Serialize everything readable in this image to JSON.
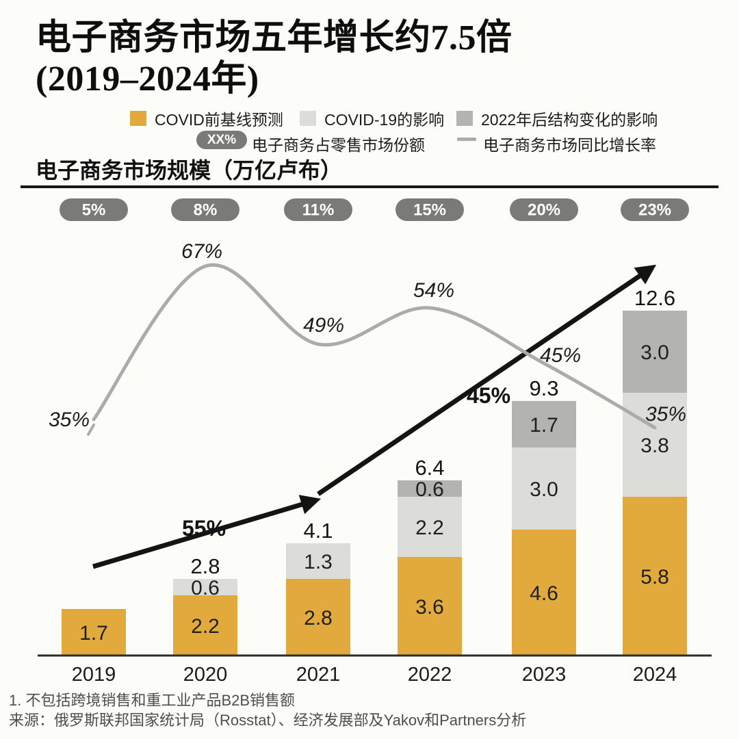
{
  "header": {
    "title_line1": "电子商务市场五年增长约7.5倍",
    "title_line2": "(2019–2024年)",
    "subtitle": "电子商务市场规模（万亿卢布）"
  },
  "legend": {
    "series": [
      {
        "label": "COVID前基线预测",
        "color": "#E2A93C"
      },
      {
        "label": "COVID-19的影响",
        "color": "#DCDCD8"
      },
      {
        "label": "2022年后结构变化的影响",
        "color": "#B3B3B0"
      }
    ],
    "share_badge": {
      "badge_text": "XX%",
      "label": "电子商务占零售市场份额",
      "badge_color": "#7A7A78"
    },
    "growth_line": {
      "label": "电子商务市场同比增长率",
      "color": "#ABABAB"
    }
  },
  "chart_data": {
    "type": "combo: stacked-bar + line",
    "title": "电子商务市场五年增长约7.5倍（2019–2024年）",
    "ylabel": "电子商务市场规模（万亿卢布）",
    "categories": [
      "2019",
      "2020",
      "2021",
      "2022",
      "2023",
      "2024"
    ],
    "series": [
      {
        "name": "COVID前基线预测",
        "color": "#E2A93C",
        "values": [
          1.7,
          2.2,
          2.8,
          3.6,
          4.6,
          5.8
        ]
      },
      {
        "name": "COVID-19的影响",
        "color": "#DCDCD8",
        "values": [
          0,
          0.6,
          1.3,
          2.2,
          3.0,
          3.8
        ]
      },
      {
        "name": "2022年后结构变化的影响",
        "color": "#B3B3B0",
        "values": [
          0,
          0,
          0,
          0.6,
          1.7,
          3.0
        ]
      }
    ],
    "stack_totals": [
      1.7,
      2.8,
      4.1,
      6.4,
      9.3,
      12.6
    ],
    "total_labels": [
      "",
      "2.8",
      "4.1",
      "6.4",
      "9.3",
      "12.6"
    ],
    "retail_share_pills": {
      "name": "电子商务占零售市场份额",
      "values": [
        "5%",
        "8%",
        "11%",
        "15%",
        "20%",
        "23%"
      ],
      "pill_color": "#7A7A78",
      "text_color": "#FFFFFF"
    },
    "yoy_growth_line": {
      "name": "电子商务市场同比增长率",
      "values_percent": [
        35,
        67,
        49,
        54,
        45,
        35
      ],
      "labels": [
        "35%",
        "67%",
        "49%",
        "54%",
        "45%",
        "35%"
      ],
      "color": "#ABABAB"
    },
    "trend_arrows": [
      {
        "label": "55%"
      },
      {
        "label": "45%"
      }
    ],
    "grid": false,
    "legend_position": "top",
    "ylim": [
      0,
      13
    ]
  },
  "footnotes": {
    "note1": "1. 不包括跨境销售和重工业产品B2B销售额",
    "source": "来源：俄罗斯联邦国家统计局（Rosstat）、经济发展部及Yakov和Partners分析"
  }
}
